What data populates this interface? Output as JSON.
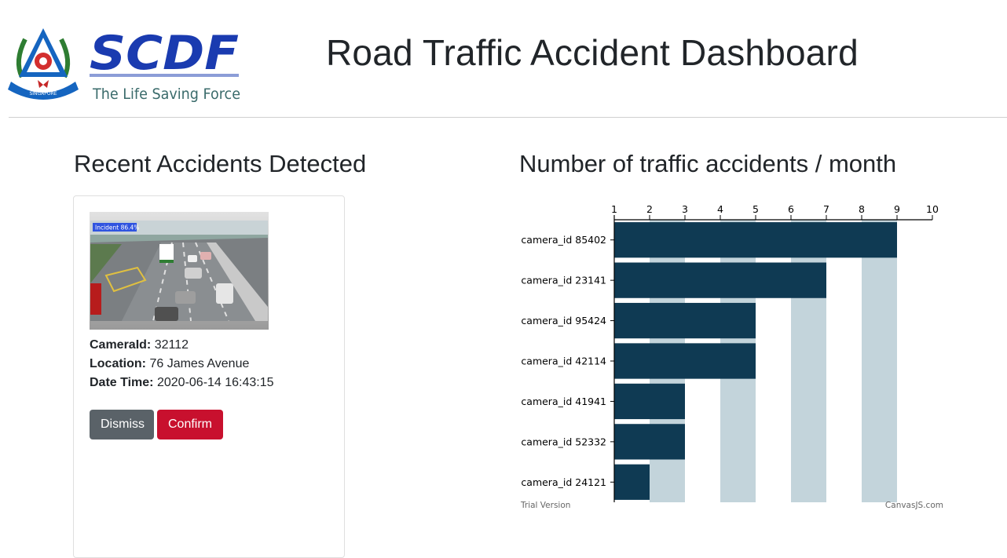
{
  "header": {
    "logo_text": "SCDF",
    "logo_tagline": "The Life Saving Force",
    "crest_text": "SINGAPORE",
    "title": "Road Traffic Accident Dashboard"
  },
  "recent": {
    "title": "Recent Accidents Detected",
    "incident_label": "Incident 86.4%",
    "camera_label": "CameraId:",
    "camera_value": "32112",
    "location_label": "Location:",
    "location_value": "76 James Avenue",
    "datetime_label": "Date Time:",
    "datetime_value": "2020-06-14 16:43:15",
    "dismiss_label": "Dismiss",
    "confirm_label": "Confirm"
  },
  "chart": {
    "title": "Number of traffic accidents / month",
    "trial_label": "Trial Version",
    "credit_label": "CanvasJS.com"
  },
  "chart_data": {
    "type": "bar",
    "orientation": "horizontal",
    "title": "Number of traffic accidents / month",
    "categories": [
      "camera_id 85402",
      "camera_id 23141",
      "camera_id 95424",
      "camera_id 42114",
      "camera_id 41941",
      "camera_id 52332",
      "camera_id 24121"
    ],
    "values": [
      9,
      7,
      5,
      5,
      3,
      3,
      2
    ],
    "xlim": [
      1,
      10
    ],
    "ticks": [
      1,
      2,
      3,
      4,
      5,
      6,
      7,
      8,
      9,
      10
    ],
    "axis_position": "top",
    "alternating_bands": true,
    "bar_color": "#0f3a53",
    "band_color": "#c3d4db"
  }
}
